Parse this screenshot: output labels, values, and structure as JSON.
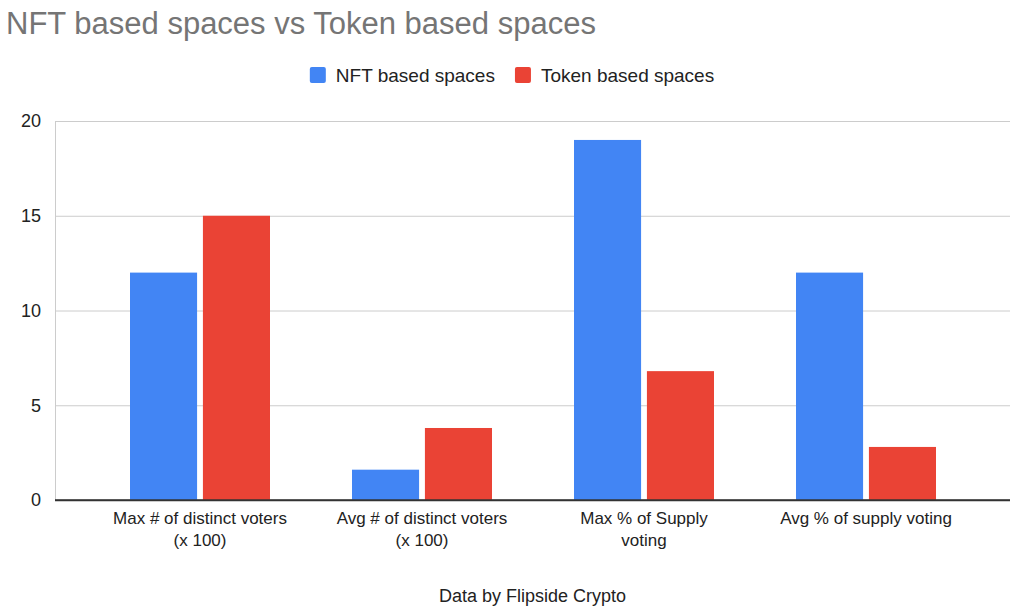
{
  "chart_data": {
    "type": "bar",
    "title": "NFT based spaces vs Token based spaces",
    "x_label": "Data by Flipside Crypto",
    "categories": [
      "Max # of distinct voters (x 100)",
      "Avg # of distinct voters (x 100)",
      "Max % of Supply voting",
      "Avg % of supply voting"
    ],
    "series": [
      {
        "name": "NFT based spaces",
        "color": "#4285f4",
        "values": [
          12,
          1.6,
          19,
          12
        ]
      },
      {
        "name": "Token based spaces",
        "color": "#ea4335",
        "values": [
          15,
          3.8,
          6.8,
          2.8
        ]
      }
    ],
    "ylim": [
      0,
      20
    ],
    "yticks": [
      0,
      5,
      10,
      15,
      20
    ],
    "grid": true,
    "legend": "top"
  }
}
